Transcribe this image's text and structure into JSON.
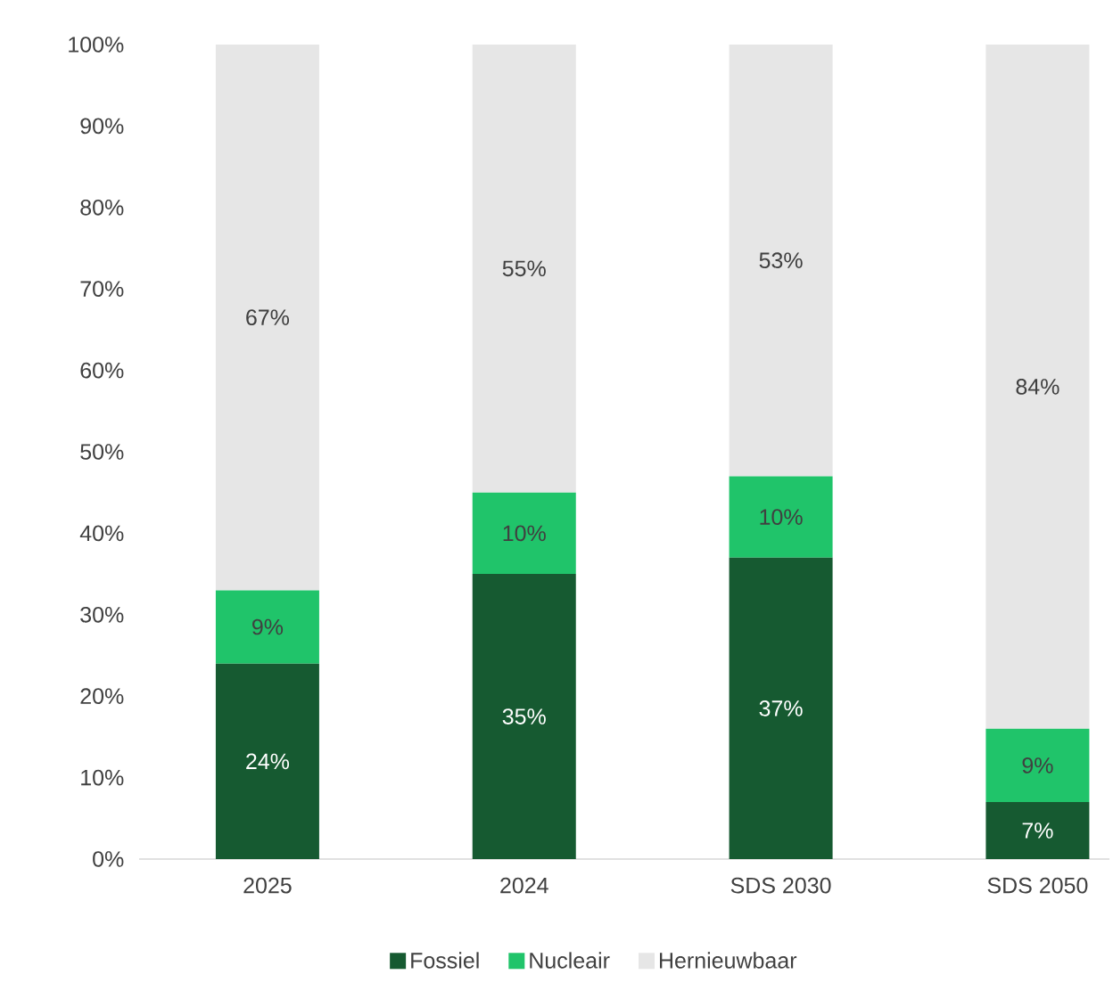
{
  "chart_data": {
    "type": "bar",
    "stacked": true,
    "categories": [
      "2025",
      "2024",
      "SDS 2030",
      "SDS 2050"
    ],
    "series": [
      {
        "name": "Fossiel",
        "color": "#165a31",
        "values": [
          24,
          35,
          37,
          7
        ],
        "value_labels": [
          "24%",
          "35%",
          "37%",
          "7%"
        ]
      },
      {
        "name": "Nucleair",
        "color": "#20c46a",
        "values": [
          9,
          10,
          10,
          9
        ],
        "value_labels": [
          "9%",
          "10%",
          "10%",
          "9%"
        ]
      },
      {
        "name": "Hernieuwbaar",
        "color": "#e6e6e6",
        "values": [
          67,
          55,
          53,
          84
        ],
        "value_labels": [
          "67%",
          "55%",
          "53%",
          "84%"
        ]
      }
    ],
    "ylim": [
      0,
      100
    ],
    "yticks": [
      {
        "value": 0,
        "label": "0%"
      },
      {
        "value": 10,
        "label": "10%"
      },
      {
        "value": 20,
        "label": "20%"
      },
      {
        "value": 30,
        "label": "30%"
      },
      {
        "value": 40,
        "label": "40%"
      },
      {
        "value": 50,
        "label": "50%"
      },
      {
        "value": 60,
        "label": "60%"
      },
      {
        "value": 70,
        "label": "70%"
      },
      {
        "value": 80,
        "label": "80%"
      },
      {
        "value": 90,
        "label": "90%"
      },
      {
        "value": 100,
        "label": "100%"
      }
    ],
    "grid": false,
    "legend": "bottom"
  }
}
